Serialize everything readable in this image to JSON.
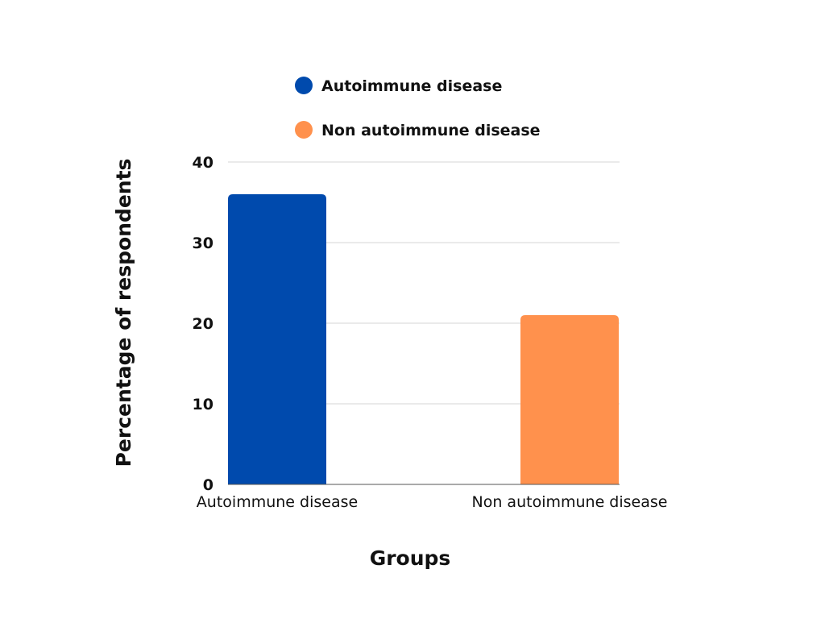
{
  "chart_data": {
    "type": "bar",
    "title": "",
    "xlabel": "Groups",
    "ylabel": "Percentage of respondents",
    "categories": [
      "Autoimmune disease",
      "Non autoimmune disease"
    ],
    "values": [
      36,
      21
    ],
    "bar_colors": [
      "#004AAD",
      "#FF914D"
    ],
    "ylim": [
      0,
      40
    ],
    "yticks": [
      "0",
      "10",
      "20",
      "30",
      "40"
    ],
    "grid": true,
    "legend": {
      "placement": "top",
      "entries": [
        {
          "label": "Autoimmune disease",
          "color": "#004AAD"
        },
        {
          "label": "Non autoimmune disease",
          "color": "#FF914D"
        }
      ]
    }
  }
}
